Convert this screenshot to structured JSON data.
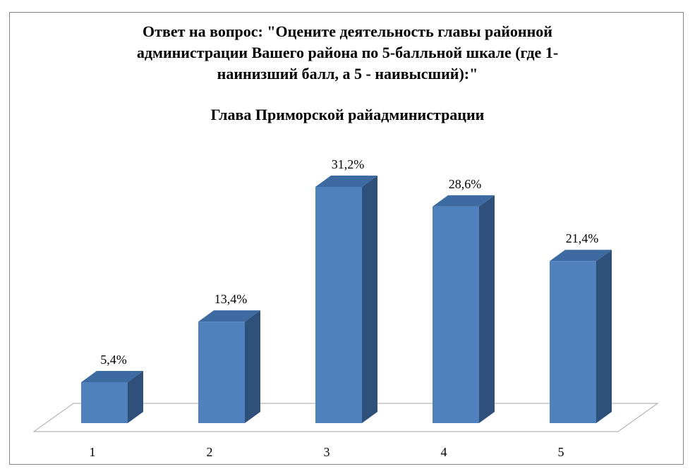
{
  "chart_data": {
    "type": "bar",
    "title_lines": [
      "Ответ на вопрос: \"Оцените деятельность главы районной",
      "администрации Вашего района по 5-балльной шкале (где 1-",
      "наинизший балл, а 5 - наивысший):\""
    ],
    "subtitle": "Глава Приморской райадминистрации",
    "categories": [
      "1",
      "2",
      "3",
      "4",
      "5"
    ],
    "values": [
      5.4,
      13.4,
      31.2,
      28.6,
      21.4
    ],
    "value_labels": [
      "5,4%",
      "13,4%",
      "31,2%",
      "28,6%",
      "21,4%"
    ],
    "unit": "%",
    "colors": {
      "front": "#4f81bd",
      "side": "#2e507a",
      "top": "#3d6aa0",
      "floor": "#ffffff",
      "floor_stroke": "#a6a6a6"
    },
    "grid": false,
    "legend": "none",
    "style": "3d-column"
  }
}
